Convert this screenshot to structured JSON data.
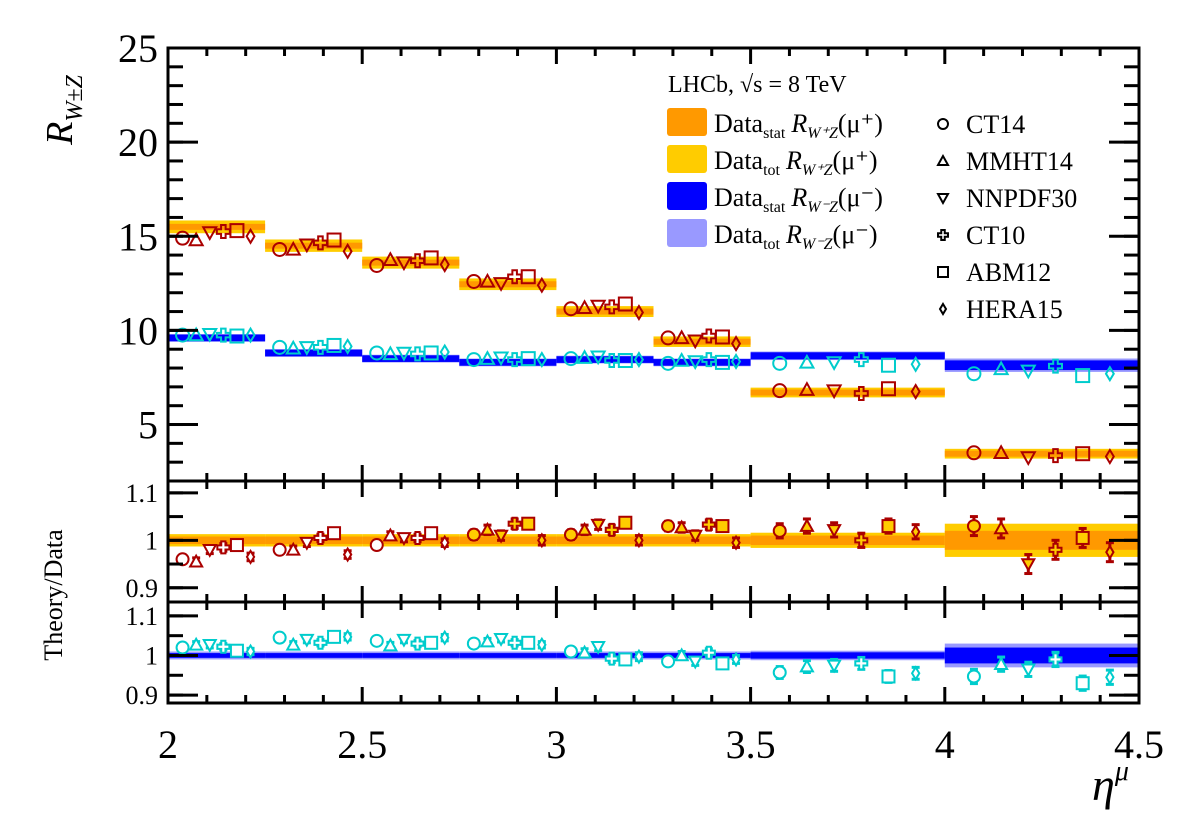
{
  "chart_data": {
    "type": "scatter",
    "title": "",
    "xlabel": "η^μ",
    "xlim": [
      2,
      4.5
    ],
    "x_ticks": [
      "2",
      "2.5",
      "3",
      "3.5",
      "4",
      "4.5"
    ],
    "x_tick_values": [
      2,
      2.5,
      3,
      3.5,
      4,
      4.5
    ],
    "bins": [
      [
        2.0,
        2.25
      ],
      [
        2.25,
        2.5
      ],
      [
        2.5,
        2.75
      ],
      [
        2.75,
        3.0
      ],
      [
        3.0,
        3.25
      ],
      [
        3.25,
        3.5
      ],
      [
        3.5,
        4.0
      ],
      [
        4.0,
        4.5
      ]
    ],
    "colors": {
      "plus_stat": "#FF9900",
      "plus_tot": "#FFCC00",
      "minus_stat": "#0000FF",
      "minus_tot": "#9999FF",
      "plus_theory_marker": "#AA0000",
      "minus_theory_marker": "#00CCCC",
      "axis": "#000000"
    },
    "theory_models": [
      {
        "name": "CT14",
        "marker": "circle"
      },
      {
        "name": "MMHT14",
        "marker": "triangle-up"
      },
      {
        "name": "NNPDF30",
        "marker": "triangle-down"
      },
      {
        "name": "CT10",
        "marker": "plus"
      },
      {
        "name": "ABM12",
        "marker": "square"
      },
      {
        "name": "HERA15",
        "marker": "diamond"
      }
    ],
    "panels": [
      {
        "id": "main",
        "ylabel": "R_{W^{±}Z}",
        "ylim": [
          2,
          25
        ],
        "y_ticks": [
          "5",
          "10",
          "15",
          "20",
          "25"
        ],
        "y_tick_values": [
          5,
          10,
          15,
          20,
          25
        ],
        "data_plus": {
          "values": [
            15.5,
            14.5,
            13.6,
            12.45,
            11.0,
            9.4,
            6.7,
            3.45
          ],
          "stat_err": [
            0.1,
            0.1,
            0.1,
            0.1,
            0.08,
            0.08,
            0.07,
            0.06
          ],
          "tot_err": [
            0.18,
            0.17,
            0.16,
            0.15,
            0.13,
            0.12,
            0.1,
            0.1
          ]
        },
        "data_minus": {
          "values": [
            9.6,
            8.8,
            8.5,
            8.3,
            8.45,
            8.3,
            8.65,
            8.15
          ],
          "stat_err": [
            0.07,
            0.07,
            0.07,
            0.07,
            0.07,
            0.07,
            0.08,
            0.15
          ],
          "tot_err": [
            0.1,
            0.1,
            0.1,
            0.1,
            0.1,
            0.1,
            0.12,
            0.25
          ]
        },
        "theory_plus": [
          [
            14.9,
            14.8,
            15.2,
            15.25,
            15.3,
            15.0
          ],
          [
            14.3,
            14.3,
            14.55,
            14.65,
            14.8,
            14.2
          ],
          [
            13.45,
            13.75,
            13.6,
            13.7,
            13.85,
            13.5
          ],
          [
            12.6,
            12.6,
            12.5,
            12.85,
            12.85,
            12.4
          ],
          [
            11.15,
            11.2,
            11.3,
            11.25,
            11.4,
            10.95
          ],
          [
            9.6,
            9.6,
            9.45,
            9.7,
            9.65,
            9.3
          ],
          [
            6.8,
            6.85,
            6.8,
            6.65,
            6.9,
            6.75
          ],
          [
            3.5,
            3.5,
            3.25,
            3.35,
            3.45,
            3.3
          ]
        ],
        "theory_minus": [
          [
            9.75,
            9.75,
            9.8,
            9.75,
            9.7,
            9.75
          ],
          [
            9.1,
            9.05,
            9.1,
            9.1,
            9.2,
            9.15
          ],
          [
            8.8,
            8.75,
            8.8,
            8.75,
            8.8,
            8.85
          ],
          [
            8.45,
            8.5,
            8.55,
            8.45,
            8.5,
            8.45
          ],
          [
            8.5,
            8.55,
            8.6,
            8.4,
            8.4,
            8.45
          ],
          [
            8.25,
            8.4,
            8.35,
            8.45,
            8.3,
            8.35
          ],
          [
            8.25,
            8.3,
            8.3,
            8.45,
            8.15,
            8.2
          ],
          [
            7.7,
            7.95,
            7.85,
            8.1,
            7.6,
            7.7
          ]
        ]
      },
      {
        "id": "ratio-plus",
        "ylabel": "Theory/Data",
        "ylim": [
          0.87,
          1.125
        ],
        "y_ticks": [
          "0.9",
          "1",
          "1.1"
        ],
        "y_tick_values": [
          0.9,
          1.0,
          1.1
        ],
        "stat_band": [
          0.008,
          0.008,
          0.008,
          0.008,
          0.008,
          0.008,
          0.01,
          0.02
        ],
        "tot_band": [
          0.013,
          0.013,
          0.013,
          0.013,
          0.013,
          0.013,
          0.016,
          0.035
        ],
        "ratios": [
          [
            0.96,
            0.955,
            0.98,
            0.985,
            0.99,
            0.965
          ],
          [
            0.98,
            0.98,
            0.995,
            1.005,
            1.015,
            0.97
          ],
          [
            0.99,
            1.01,
            1.005,
            1.005,
            1.015,
            0.995
          ],
          [
            1.012,
            1.022,
            1.01,
            1.035,
            1.035,
            1.0
          ],
          [
            1.012,
            1.022,
            1.033,
            1.022,
            1.037,
            1.0
          ],
          [
            1.03,
            1.027,
            1.01,
            1.033,
            1.03,
            0.995
          ],
          [
            1.02,
            1.03,
            1.022,
            1.0,
            1.03,
            1.018
          ],
          [
            1.03,
            1.025,
            0.95,
            0.98,
            1.005,
            0.975
          ]
        ],
        "ratio_err": [
          0.008,
          0.008,
          0.008,
          0.01,
          0.01,
          0.01,
          0.015,
          0.02
        ]
      },
      {
        "id": "ratio-minus",
        "ylabel": "",
        "ylim": [
          0.88,
          1.135
        ],
        "y_ticks": [
          "0.9",
          "1",
          "1.1"
        ],
        "y_tick_values": [
          0.9,
          1.0,
          1.1
        ],
        "stat_band": [
          0.006,
          0.006,
          0.006,
          0.006,
          0.006,
          0.006,
          0.008,
          0.02
        ],
        "tot_band": [
          0.01,
          0.01,
          0.01,
          0.01,
          0.01,
          0.01,
          0.012,
          0.03
        ],
        "ratios": [
          [
            1.02,
            1.027,
            1.027,
            1.022,
            1.012,
            1.01
          ],
          [
            1.045,
            1.027,
            1.04,
            1.032,
            1.047,
            1.047
          ],
          [
            1.037,
            1.025,
            1.04,
            1.03,
            1.032,
            1.045
          ],
          [
            1.03,
            1.035,
            1.042,
            1.032,
            1.032,
            1.027
          ],
          [
            1.01,
            1.007,
            1.022,
            0.992,
            0.99,
            0.997
          ],
          [
            0.985,
            1.0,
            0.985,
            1.007,
            0.98,
            0.99
          ],
          [
            0.957,
            0.972,
            0.975,
            0.98,
            0.947,
            0.955
          ],
          [
            0.947,
            0.978,
            0.965,
            0.99,
            0.93,
            0.945
          ]
        ],
        "ratio_err": [
          0.008,
          0.008,
          0.008,
          0.008,
          0.01,
          0.01,
          0.015,
          0.018
        ]
      }
    ],
    "legend": {
      "placement": "top-right",
      "header": "LHCb, √s = 8 TeV",
      "band_entries": [
        {
          "label": "Data",
          "sub": "stat",
          "obs": "R",
          "obs_sub": "W⁺Z",
          "tail": "(μ⁺)",
          "color_key": "plus_stat"
        },
        {
          "label": "Data",
          "sub": "tot",
          "obs": "R",
          "obs_sub": "W⁺Z",
          "tail": "(μ⁺)",
          "color_key": "plus_tot"
        },
        {
          "label": "Data",
          "sub": "stat",
          "obs": "R",
          "obs_sub": "W⁻Z",
          "tail": "(μ⁻)",
          "color_key": "minus_stat"
        },
        {
          "label": "Data",
          "sub": "tot",
          "obs": "R",
          "obs_sub": "W⁻Z",
          "tail": "(μ⁻)",
          "color_key": "minus_tot"
        }
      ]
    }
  }
}
